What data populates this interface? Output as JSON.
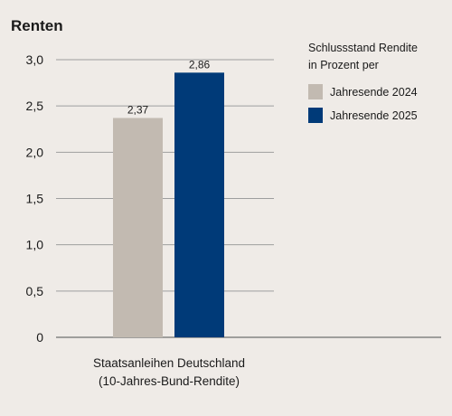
{
  "chart_data": {
    "type": "bar",
    "title": "Renten",
    "legend_title_lines": [
      "Schlussstand Rendite",
      "in Prozent per"
    ],
    "category_lines": [
      "Staatsanleihen Deutschland",
      "(10-Jahres-Bund-Rendite)"
    ],
    "categories": [
      "Staatsanleihen Deutschland (10-Jahres-Bund-Rendite)"
    ],
    "series": [
      {
        "name": "Jahresende 2024",
        "values": [
          2.37
        ],
        "labels": [
          "2,37"
        ],
        "color": "#c2bab1"
      },
      {
        "name": "Jahresende 2025",
        "values": [
          2.86
        ],
        "labels": [
          "2,86"
        ],
        "color": "#003a78"
      }
    ],
    "yticks": [
      0,
      0.5,
      1.0,
      1.5,
      2.0,
      2.5,
      3.0
    ],
    "ytick_labels": [
      "0",
      "0,5",
      "1,0",
      "1,5",
      "2,0",
      "2,5",
      "3,0"
    ],
    "ylim": [
      0,
      3.0
    ],
    "grid": true,
    "legend_position": "top-right",
    "colors": {
      "background": "#efebe7",
      "grid": "#9e9e9e",
      "axis": "#6f6f6f",
      "text": "#1a1a1a"
    }
  }
}
